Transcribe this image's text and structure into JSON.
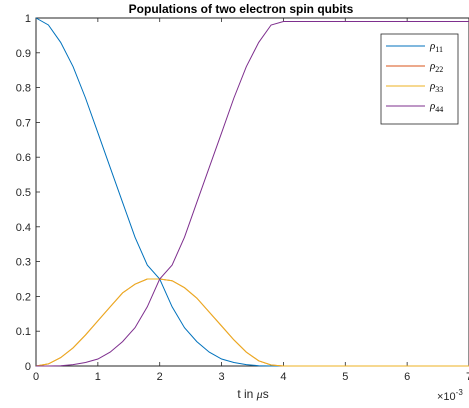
{
  "chart_data": {
    "type": "line",
    "title": "Populations of two electron spin qubits",
    "xlabel_prefix": "t in ",
    "xlabel_mu": "μ",
    "xlabel_suffix": "s",
    "x_multiplier_base": "×10",
    "x_multiplier_exp": "-3",
    "xlim": [
      0,
      7
    ],
    "ylim": [
      0,
      1
    ],
    "xticks": [
      "0",
      "1",
      "2",
      "3",
      "4",
      "5",
      "6",
      "7"
    ],
    "yticks": [
      "0",
      "0.1",
      "0.2",
      "0.3",
      "0.4",
      "0.5",
      "0.6",
      "0.7",
      "0.8",
      "0.9",
      "1"
    ],
    "grid": false,
    "legend_position": "top-right",
    "x": [
      0.0,
      0.2,
      0.4,
      0.6,
      0.8,
      1.0,
      1.2,
      1.4,
      1.6,
      1.8,
      2.0,
      2.2,
      2.4,
      2.6,
      2.8,
      3.0,
      3.2,
      3.4,
      3.6,
      3.8,
      4.0,
      4.5,
      5.0,
      5.5,
      6.0,
      6.5,
      7.0
    ],
    "series": [
      {
        "name": "ρ",
        "sub": "11",
        "color": "#0072BD",
        "values": [
          1.0,
          0.98,
          0.93,
          0.86,
          0.77,
          0.67,
          0.57,
          0.47,
          0.37,
          0.29,
          0.25,
          0.17,
          0.11,
          0.07,
          0.04,
          0.02,
          0.01,
          0.004,
          0.001,
          0.0,
          0.0,
          0.0,
          0.0,
          0.0,
          0.0,
          0.0,
          0.0
        ]
      },
      {
        "name": "ρ",
        "sub": "22",
        "color": "#D95319",
        "values": [
          0.0,
          0.006,
          0.024,
          0.052,
          0.089,
          0.13,
          0.17,
          0.21,
          0.235,
          0.25,
          0.25,
          0.245,
          0.225,
          0.195,
          0.155,
          0.115,
          0.075,
          0.04,
          0.015,
          0.003,
          0.0,
          0.0,
          0.0,
          0.0,
          0.0,
          0.0,
          0.0
        ]
      },
      {
        "name": "ρ",
        "sub": "33",
        "color": "#EDB120",
        "values": [
          0.0,
          0.006,
          0.024,
          0.052,
          0.089,
          0.13,
          0.17,
          0.21,
          0.235,
          0.25,
          0.25,
          0.245,
          0.225,
          0.195,
          0.155,
          0.115,
          0.075,
          0.04,
          0.015,
          0.003,
          0.0,
          0.0,
          0.0,
          0.0,
          0.0,
          0.0,
          0.0
        ]
      },
      {
        "name": "ρ",
        "sub": "44",
        "color": "#7E2F8E",
        "values": [
          0.0,
          0.0,
          0.001,
          0.004,
          0.01,
          0.02,
          0.04,
          0.07,
          0.11,
          0.17,
          0.25,
          0.29,
          0.37,
          0.47,
          0.57,
          0.67,
          0.77,
          0.86,
          0.93,
          0.98,
          0.99,
          0.99,
          0.99,
          0.99,
          0.99,
          0.99,
          0.99
        ]
      }
    ]
  }
}
